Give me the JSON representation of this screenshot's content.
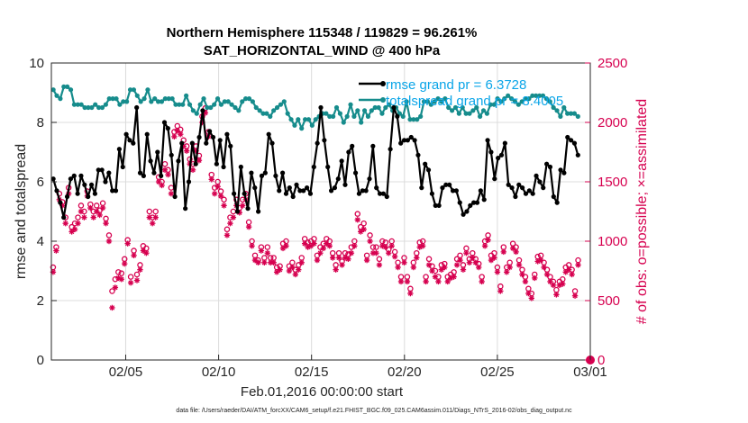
{
  "chart_data": {
    "type": "line",
    "title_line1": "Northern Hemisphere 115348 / 119829 = 96.261%",
    "title_line2": "SAT_HORIZONTAL_WIND @ 400 hPa",
    "xlabel": "Feb.01,2016 00:00:00 start",
    "ylabel_left": "rmse and totalspread",
    "ylabel_right": "# of obs: o=possible; ×=assimilated",
    "x_start": "2016-02-01",
    "x_end": "2016-03-01",
    "xlim": [
      0,
      29
    ],
    "ylim_left": [
      0,
      10
    ],
    "ylim_right": [
      0,
      2500
    ],
    "x_ticks": [
      {
        "x": 4,
        "label": "02/05"
      },
      {
        "x": 9,
        "label": "02/10"
      },
      {
        "x": 14,
        "label": "02/15"
      },
      {
        "x": 19,
        "label": "02/20"
      },
      {
        "x": 24,
        "label": "02/25"
      },
      {
        "x": 29,
        "label": "03/01"
      }
    ],
    "y_ticks_left": [
      "0",
      "2",
      "4",
      "6",
      "8",
      "10"
    ],
    "y_ticks_right": [
      "0",
      "500",
      "1000",
      "1500",
      "2000",
      "2500"
    ],
    "grid": true,
    "legend_position": "top-right",
    "colors": {
      "rmse": "#000000",
      "totalspread": "#168c8c",
      "obs": "#d6004f",
      "legend_text": "#0aa5e8"
    },
    "series": [
      {
        "name": "rmse grand pr = 6.3728",
        "axis": "left",
        "color": "#000000",
        "values": [
          6.1,
          5.7,
          5.3,
          4.8,
          5.5,
          6.1,
          6.2,
          5.6,
          6.2,
          5.9,
          5.5,
          5.9,
          5.6,
          6.4,
          6.4,
          6.0,
          6.3,
          5.7,
          5.7,
          7.1,
          6.5,
          7.6,
          7.4,
          7.3,
          8.5,
          6.3,
          6.2,
          7.6,
          6.7,
          6.3,
          7.0,
          6.2,
          8.0,
          7.8,
          6.9,
          5.5,
          6.7,
          7.3,
          5.1,
          6.0,
          7.3,
          6.6,
          7.5,
          8.4,
          7.3,
          7.7,
          7.5,
          6.6,
          7.4,
          6.5,
          7.6,
          7.2,
          5.6,
          5.0,
          6.5,
          5.6,
          5.1,
          6.3,
          5.8,
          5.0,
          6.2,
          6.3,
          7.6,
          7.3,
          6.2,
          5.7,
          6.3,
          5.6,
          5.8,
          5.5,
          5.9,
          5.7,
          5.7,
          5.8,
          5.6,
          6.5,
          7.3,
          8.5,
          7.4,
          6.5,
          5.7,
          5.8,
          6.1,
          6.7,
          5.9,
          7.0,
          7.2,
          6.3,
          5.6,
          5.7,
          5.7,
          6.1,
          7.2,
          5.8,
          5.6,
          5.6,
          5.5,
          7.1,
          8.5,
          8.2,
          7.3,
          7.4,
          7.4,
          7.5,
          7.4,
          6.9,
          5.8,
          6.6,
          6.4,
          5.6,
          5.2,
          5.2,
          5.8,
          5.9,
          5.9,
          5.7,
          5.7,
          5.3,
          4.9,
          5.0,
          5.2,
          5.3,
          5.3,
          5.7,
          5.4,
          7.4,
          7.0,
          6.1,
          6.8,
          6.9,
          7.3,
          5.9,
          5.8,
          5.5,
          5.9,
          5.8,
          5.6,
          5.7,
          5.6,
          6.2,
          6.0,
          5.8,
          6.6,
          6.5,
          5.5,
          5.3,
          6.4,
          6.3,
          7.5,
          7.4,
          7.3,
          6.9
        ]
      },
      {
        "name": "totalspread grand pr = 8.4005",
        "axis": "left",
        "color": "#168c8c",
        "values": [
          9.1,
          8.9,
          8.8,
          9.2,
          9.2,
          9.1,
          8.6,
          8.6,
          8.6,
          8.5,
          8.5,
          8.5,
          8.6,
          8.5,
          8.5,
          8.6,
          8.8,
          8.8,
          8.8,
          8.6,
          8.7,
          8.7,
          9.1,
          9.1,
          8.9,
          8.7,
          8.8,
          9.1,
          8.7,
          8.8,
          8.7,
          8.7,
          8.8,
          8.8,
          8.8,
          8.6,
          8.6,
          8.6,
          8.9,
          8.6,
          8.4,
          8.3,
          8.6,
          8.8,
          8.5,
          8.5,
          8.6,
          8.8,
          8.6,
          8.7,
          8.7,
          8.6,
          8.5,
          8.4,
          8.7,
          8.8,
          8.8,
          8.7,
          8.5,
          8.4,
          8.3,
          8.3,
          8.2,
          8.4,
          8.5,
          8.6,
          8.7,
          8.3,
          8.1,
          7.9,
          8.1,
          7.8,
          8.1,
          8.1,
          7.9,
          8.1,
          8.2,
          8.3,
          8.3,
          8.2,
          8.2,
          8.5,
          8.3,
          8.0,
          8.2,
          8.6,
          8.2,
          8.4,
          8.0,
          8.4,
          8.2,
          8.4,
          8.5,
          8.5,
          8.3,
          8.5,
          8.6,
          8.4,
          8.5,
          8.3,
          8.2,
          8.7,
          8.1,
          8.1,
          8.1,
          8.2,
          8.7,
          8.7,
          8.6,
          8.7,
          8.8,
          8.7,
          8.8,
          8.5,
          8.4,
          8.5,
          8.3,
          8.5,
          8.3,
          8.3,
          8.4,
          8.5,
          8.2,
          8.4,
          8.3,
          8.6,
          8.6,
          8.8,
          8.7,
          8.8,
          8.9,
          8.8,
          8.7,
          8.6,
          8.7,
          8.8,
          8.8,
          8.9,
          8.9,
          8.9,
          8.9,
          8.8,
          8.7,
          8.5,
          8.4,
          8.2,
          8.5,
          8.3,
          8.3,
          8.3,
          8.2
        ]
      }
    ],
    "obs_possible": {
      "axis": "right",
      "marker": "o",
      "values": [
        780,
        950,
        1400,
        1330,
        1200,
        1450,
        1120,
        1150,
        1200,
        1300,
        1250,
        1420,
        1310,
        1250,
        1300,
        1260,
        1320,
        1190,
        1050,
        580,
        680,
        740,
        730,
        850,
        1010,
        700,
        920,
        720,
        800,
        960,
        940,
        1250,
        1200,
        1250,
        1540,
        1500,
        1650,
        1600,
        1450,
        1920,
        1970,
        1940,
        1850,
        1800,
        1690,
        1650,
        1800,
        1720,
        2050,
        2120,
        1920,
        1560,
        1450,
        1500,
        1420,
        1350,
        1100,
        1200,
        1250,
        1350,
        1280,
        1350,
        1400,
        1160,
        1000,
        880,
        840,
        950,
        860,
        950,
        860,
        860,
        780,
        790,
        980,
        1000,
        790,
        820,
        760,
        800,
        860,
        1020,
        990,
        1000,
        1020,
        880,
        950,
        980,
        1020,
        1000,
        900,
        800,
        900,
        830,
        900,
        890,
        950,
        1000,
        1230,
        1120,
        1150,
        880,
        1050,
        950,
        950,
        850,
        1000,
        990,
        930,
        1000,
        910,
        820,
        700,
        860,
        700,
        600,
        820,
        900,
        990,
        1000,
        700,
        850,
        790,
        750,
        700,
        800,
        810,
        700,
        720,
        740,
        850,
        880,
        800,
        940,
        850,
        900,
        850,
        810,
        700,
        1000,
        1050,
        880,
        900,
        780,
        620,
        950,
        780,
        820,
        980,
        950,
        840,
        760,
        700,
        600,
        560,
        720,
        870,
        880,
        820,
        760,
        700,
        660,
        590,
        660,
        680,
        780,
        800,
        760,
        580,
        840
      ]
    },
    "obs_assimilated": {
      "axis": "right",
      "marker": "*",
      "values": [
        740,
        920,
        1350,
        1300,
        1150,
        1400,
        1080,
        1100,
        1150,
        1250,
        1200,
        1380,
        1280,
        1200,
        1250,
        1220,
        1280,
        1150,
        1000,
        440,
        610,
        690,
        680,
        810,
        980,
        650,
        880,
        670,
        760,
        920,
        900,
        1200,
        1150,
        1200,
        1500,
        1470,
        1600,
        1560,
        1400,
        1880,
        1930,
        1900,
        1800,
        1760,
        1650,
        1600,
        1760,
        1680,
        2000,
        2080,
        1880,
        1520,
        1400,
        1460,
        1380,
        1300,
        1050,
        1150,
        1200,
        1300,
        1240,
        1300,
        1350,
        1120,
        960,
        840,
        820,
        920,
        820,
        900,
        820,
        820,
        740,
        760,
        940,
        960,
        750,
        780,
        720,
        760,
        820,
        980,
        950,
        960,
        980,
        840,
        900,
        940,
        980,
        960,
        860,
        760,
        860,
        800,
        860,
        850,
        900,
        960,
        1180,
        1080,
        1100,
        840,
        1000,
        900,
        900,
        800,
        960,
        950,
        900,
        960,
        870,
        780,
        660,
        820,
        660,
        560,
        780,
        860,
        950,
        960,
        660,
        800,
        750,
        700,
        660,
        760,
        780,
        660,
        690,
        700,
        800,
        840,
        760,
        900,
        820,
        860,
        820,
        780,
        660,
        960,
        1010,
        840,
        860,
        740,
        580,
        910,
        740,
        780,
        940,
        910,
        800,
        720,
        660,
        560,
        520,
        690,
        830,
        840,
        780,
        720,
        660,
        630,
        550,
        630,
        640,
        740,
        760,
        720,
        540,
        800
      ]
    },
    "zero_marker": {
      "x": 29,
      "value": 0
    }
  },
  "footer_text": "data file: /Users/raeder/DAI/ATM_forcXX/CAM6_setup/f.e21.FHIST_BGC.f09_025.CAM6assim.011/Diags_NTrS_2016-02/obs_diag_output.nc"
}
